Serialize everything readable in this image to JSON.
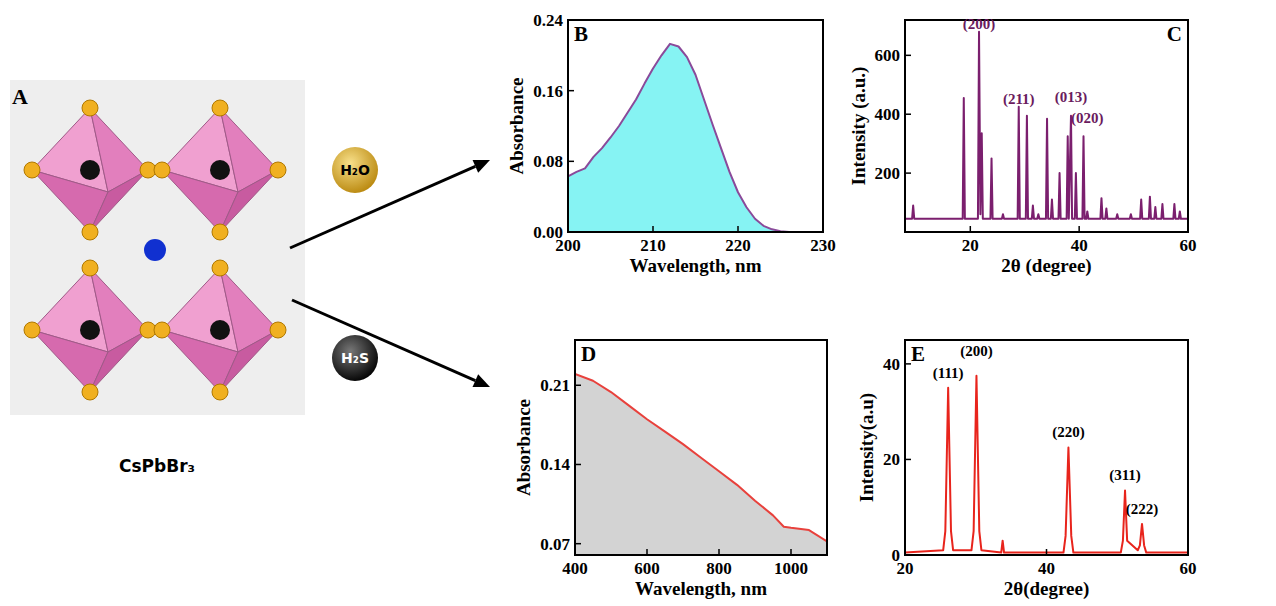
{
  "diagram": {
    "label": "A",
    "caption": "CsPbBr₃",
    "reagents": [
      "H₂O",
      "H₂S"
    ]
  },
  "chart_data": [
    {
      "type": "area",
      "title": "B",
      "x_label": "Wavelength, nm",
      "y_label": "Absorbance",
      "color": "#8a4a9a",
      "x": [
        200,
        201,
        202,
        203,
        204,
        205,
        206,
        207,
        208,
        209,
        210,
        211,
        212,
        213,
        214,
        215,
        216,
        217,
        218,
        219,
        220,
        221,
        222,
        223,
        224,
        225,
        226,
        227,
        228,
        229,
        230
      ],
      "values": [
        0.063,
        0.068,
        0.072,
        0.085,
        0.095,
        0.107,
        0.12,
        0.135,
        0.15,
        0.168,
        0.185,
        0.2,
        0.213,
        0.21,
        0.198,
        0.178,
        0.15,
        0.122,
        0.095,
        0.068,
        0.045,
        0.028,
        0.015,
        0.007,
        0.003,
        0.001,
        0,
        0,
        0,
        0,
        0
      ],
      "xlim": [
        200,
        230
      ],
      "xticks": [
        200,
        210,
        220,
        230
      ],
      "ylim": [
        0,
        0.24
      ],
      "yticks": [
        {
          "value": 0,
          "label": "0.00"
        },
        {
          "value": 0.08,
          "label": "0.08"
        },
        {
          "value": 0.16,
          "label": "0.16"
        },
        {
          "value": 0.24,
          "label": "0.24"
        }
      ]
    },
    {
      "type": "line",
      "title": "C",
      "x_label": "2θ (degree)",
      "y_label": "Intensity (a.u.)",
      "color": "#7b1f6e",
      "x": [
        8,
        9.3,
        9.5,
        9.7,
        18.6,
        18.8,
        19.0,
        21.4,
        21.6,
        21.85,
        22.1,
        22.3,
        23.7,
        23.9,
        24.1,
        25.8,
        26,
        26.2,
        28.7,
        28.9,
        29.1,
        30.2,
        30.4,
        30.6,
        31.3,
        31.5,
        31.7,
        32.3,
        32.5,
        32.7,
        33.9,
        34.1,
        34.3,
        34.8,
        35,
        35.2,
        36.2,
        36.4,
        36.6,
        37.7,
        37.9,
        38.1,
        38.5,
        38.7,
        39.2,
        39.4,
        39.6,
        40.6,
        40.8,
        41.0,
        41.3,
        41.5,
        41.7,
        43.9,
        44.1,
        44.3,
        44.8,
        45,
        45.2,
        46.8,
        47,
        47.2,
        49.3,
        49.5,
        49.7,
        51.2,
        51.4,
        51.6,
        52.8,
        53,
        53.2,
        53.8,
        54,
        54.2,
        55.1,
        55.3,
        55.5,
        57.3,
        57.5,
        57.7,
        58.3,
        58.5,
        58.7,
        60
      ],
      "values": [
        45,
        45,
        90,
        45,
        45,
        455,
        45,
        45,
        680,
        60,
        335,
        45,
        45,
        250,
        45,
        45,
        60,
        45,
        45,
        425,
        45,
        45,
        395,
        45,
        45,
        90,
        45,
        45,
        60,
        45,
        45,
        385,
        45,
        45,
        110,
        45,
        45,
        200,
        45,
        45,
        325,
        45,
        395,
        45,
        45,
        200,
        45,
        45,
        325,
        45,
        45,
        70,
        45,
        45,
        115,
        45,
        45,
        80,
        45,
        45,
        60,
        45,
        45,
        60,
        45,
        45,
        110,
        45,
        45,
        120,
        45,
        45,
        85,
        45,
        45,
        95,
        45,
        45,
        95,
        45,
        45,
        70,
        45,
        45
      ],
      "xlim": [
        8,
        60
      ],
      "xticks": [
        20,
        40,
        60
      ],
      "ylim": [
        0,
        720
      ],
      "yticks": [
        200,
        400,
        600
      ],
      "annotations": [
        {
          "text": "(200)",
          "x": 21.6,
          "y": 680
        },
        {
          "text": "(211)",
          "x": 28.9,
          "y": 425
        },
        {
          "text": "(013)",
          "x": 38.5,
          "y": 430
        },
        {
          "text": "(020)",
          "x": 41.5,
          "y": 360
        }
      ]
    },
    {
      "type": "area",
      "title": "D",
      "x_label": "Wavelength, nm",
      "y_label": "Absorbance",
      "color": "#e8413c",
      "x": [
        400,
        450,
        500,
        550,
        600,
        650,
        700,
        750,
        800,
        850,
        900,
        950,
        980,
        1000,
        1050,
        1100
      ],
      "values": [
        0.22,
        0.214,
        0.204,
        0.192,
        0.18,
        0.169,
        0.158,
        0.146,
        0.134,
        0.122,
        0.108,
        0.095,
        0.085,
        0.084,
        0.082,
        0.072
      ],
      "xlim": [
        400,
        1100
      ],
      "xticks": [
        400,
        600,
        800,
        1000
      ],
      "ylim": [
        0.06,
        0.25
      ],
      "yticks": [
        0.07,
        0.14,
        0.21
      ]
    },
    {
      "type": "line",
      "title": "E",
      "x_label": "2θ(degree)",
      "y_label": "Intensity(a.u)",
      "color": "#e8241c",
      "x": [
        20,
        25.4,
        25.7,
        26.1,
        26.5,
        26.8,
        29.4,
        29.7,
        30.1,
        30.5,
        30.8,
        33.6,
        33.8,
        34,
        42.4,
        42.7,
        43.1,
        43.5,
        43.8,
        50.5,
        50.8,
        51.1,
        51.4,
        52.9,
        53.2,
        53.5,
        53.8,
        54.1,
        60
      ],
      "values": [
        0.5,
        1,
        5,
        35,
        5,
        1,
        1,
        5,
        37.5,
        5,
        1,
        0.5,
        3,
        0.5,
        0.5,
        4,
        22.5,
        4,
        0.5,
        0.5,
        3,
        13.5,
        3,
        1,
        2,
        6.5,
        2,
        0.5,
        0.5
      ],
      "xlim": [
        20,
        60
      ],
      "xticks": [
        20,
        40,
        60
      ],
      "ylim": [
        0,
        45
      ],
      "yticks": [
        0,
        20,
        40
      ],
      "annotations": [
        {
          "text": "(111)",
          "x": 26.1,
          "y": 36.5
        },
        {
          "text": "(200)",
          "x": 30.1,
          "y": 41
        },
        {
          "text": "(220)",
          "x": 43.1,
          "y": 24
        },
        {
          "text": "(311)",
          "x": 51.1,
          "y": 15
        },
        {
          "text": "(222)",
          "x": 53.5,
          "y": 8
        }
      ]
    }
  ]
}
